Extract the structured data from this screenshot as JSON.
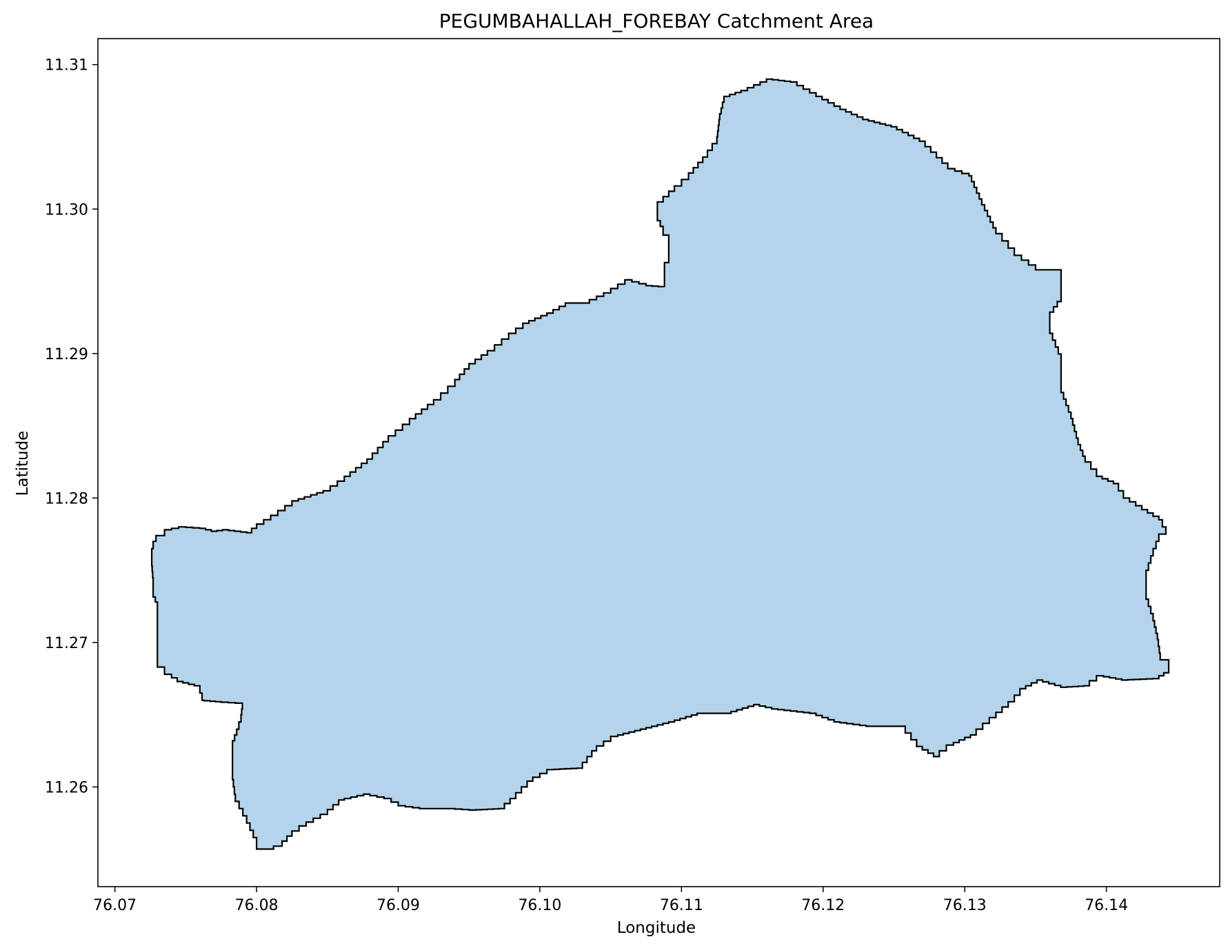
{
  "chart_data": {
    "type": "area",
    "title": "PEGUMBAHALLAH_FOREBAY Catchment Area",
    "xlabel": "Longitude",
    "ylabel": "Latitude",
    "xlim": [
      76.0688,
      76.148
    ],
    "ylim": [
      11.2531,
      11.3118
    ],
    "xticks": [
      76.07,
      76.08,
      76.09,
      76.1,
      76.11,
      76.12,
      76.13,
      76.14
    ],
    "xtick_labels": [
      "76.07",
      "76.08",
      "76.09",
      "76.10",
      "76.11",
      "76.12",
      "76.13",
      "76.14"
    ],
    "yticks": [
      11.26,
      11.27,
      11.28,
      11.29,
      11.3,
      11.31
    ],
    "ytick_labels": [
      "11.26",
      "11.27",
      "11.28",
      "11.29",
      "11.30",
      "11.31"
    ],
    "grid": false,
    "fill_color": "#b3d4ea",
    "edge_color": "#000000",
    "boundary": [
      [
        76.0726,
        11.2765
      ],
      [
        76.0727,
        11.277
      ],
      [
        76.0729,
        11.2774
      ],
      [
        76.0735,
        11.2778
      ],
      [
        76.0745,
        11.278
      ],
      [
        76.076,
        11.2779
      ],
      [
        76.0768,
        11.2777
      ],
      [
        76.0776,
        11.2778
      ],
      [
        76.0793,
        11.2776
      ],
      [
        76.08,
        11.2782
      ],
      [
        76.081,
        11.2788
      ],
      [
        76.0825,
        11.2798
      ],
      [
        76.0847,
        11.2805
      ],
      [
        76.0862,
        11.2815
      ],
      [
        76.0878,
        11.2827
      ],
      [
        76.0893,
        11.2843
      ],
      [
        76.0908,
        11.2855
      ],
      [
        76.0925,
        11.2868
      ],
      [
        76.094,
        11.2882
      ],
      [
        76.095,
        11.2893
      ],
      [
        76.0963,
        11.2902
      ],
      [
        76.0978,
        11.2914
      ],
      [
        76.0988,
        11.2921
      ],
      [
        76.1005,
        11.2928
      ],
      [
        76.1018,
        11.2935
      ],
      [
        76.103,
        11.2935
      ],
      [
        76.1045,
        11.2942
      ],
      [
        76.106,
        11.2951
      ],
      [
        76.1075,
        11.2947
      ],
      [
        76.1088,
        11.2946
      ],
      [
        76.1088,
        11.2963
      ],
      [
        76.1091,
        11.2967
      ],
      [
        76.1091,
        11.2982
      ],
      [
        76.1087,
        11.2988
      ],
      [
        76.1083,
        11.2996
      ],
      [
        76.1083,
        11.3005
      ],
      [
        76.1095,
        11.3016
      ],
      [
        76.1105,
        11.3025
      ],
      [
        76.1115,
        11.3036
      ],
      [
        76.1125,
        11.305
      ],
      [
        76.1127,
        11.3066
      ],
      [
        76.113,
        11.3078
      ],
      [
        76.1142,
        11.3082
      ],
      [
        76.116,
        11.309
      ],
      [
        76.1177,
        11.3088
      ],
      [
        76.1195,
        11.3078
      ],
      [
        76.1212,
        11.3069
      ],
      [
        76.1228,
        11.3062
      ],
      [
        76.1248,
        11.3057
      ],
      [
        76.1268,
        11.3047
      ],
      [
        76.1288,
        11.3028
      ],
      [
        76.1303,
        11.3023
      ],
      [
        76.1312,
        11.3003
      ],
      [
        76.1322,
        11.2983
      ],
      [
        76.1335,
        11.2968
      ],
      [
        76.135,
        11.2958
      ],
      [
        76.1368,
        11.2958
      ],
      [
        76.1368,
        11.2936
      ],
      [
        76.136,
        11.2925
      ],
      [
        76.136,
        11.2914
      ],
      [
        76.1368,
        11.2895
      ],
      [
        76.1368,
        11.2873
      ],
      [
        76.1375,
        11.2855
      ],
      [
        76.138,
        11.2837
      ],
      [
        76.1385,
        11.2825
      ],
      [
        76.1393,
        11.2815
      ],
      [
        76.1405,
        11.281
      ],
      [
        76.1412,
        11.28
      ],
      [
        76.1425,
        11.2792
      ],
      [
        76.1437,
        11.2785
      ],
      [
        76.1442,
        11.2775
      ],
      [
        76.1437,
        11.277
      ],
      [
        76.1433,
        11.276
      ],
      [
        76.1428,
        11.2745
      ],
      [
        76.1428,
        11.273
      ],
      [
        76.1433,
        11.2715
      ],
      [
        76.1436,
        11.2702
      ],
      [
        76.1438,
        11.2688
      ],
      [
        76.1444,
        11.2683
      ],
      [
        76.1444,
        11.2679
      ],
      [
        76.1437,
        11.2675
      ],
      [
        76.1415,
        11.2674
      ],
      [
        76.1398,
        11.2677
      ],
      [
        76.1388,
        11.267
      ],
      [
        76.1372,
        11.2669
      ],
      [
        76.1355,
        11.2674
      ],
      [
        76.1343,
        11.2668
      ],
      [
        76.1335,
        11.2659
      ],
      [
        76.1322,
        11.2648
      ],
      [
        76.1308,
        11.2636
      ],
      [
        76.1292,
        11.2629
      ],
      [
        76.1282,
        11.2621
      ],
      [
        76.127,
        11.2628
      ],
      [
        76.1258,
        11.2642
      ],
      [
        76.1235,
        11.2642
      ],
      [
        76.1212,
        11.2645
      ],
      [
        76.1195,
        11.2651
      ],
      [
        76.1168,
        11.2654
      ],
      [
        76.1155,
        11.2657
      ],
      [
        76.1135,
        11.2651
      ],
      [
        76.1115,
        11.2651
      ],
      [
        76.1095,
        11.2645
      ],
      [
        76.1075,
        11.264
      ],
      [
        76.1055,
        11.2635
      ],
      [
        76.104,
        11.2625
      ],
      [
        76.103,
        11.2613
      ],
      [
        76.101,
        11.2612
      ],
      [
        76.0995,
        11.2604
      ],
      [
        76.0983,
        11.2592
      ],
      [
        76.0975,
        11.2585
      ],
      [
        76.0955,
        11.2584
      ],
      [
        76.094,
        11.2585
      ],
      [
        76.092,
        11.2585
      ],
      [
        76.0905,
        11.2587
      ],
      [
        76.0895,
        11.2592
      ],
      [
        76.088,
        11.2595
      ],
      [
        76.0862,
        11.2591
      ],
      [
        76.085,
        11.2581
      ],
      [
        76.0835,
        11.2573
      ],
      [
        76.0825,
        11.2566
      ],
      [
        76.0818,
        11.2559
      ],
      [
        76.0812,
        11.2557
      ],
      [
        76.08,
        11.2557
      ],
      [
        76.08,
        11.2565
      ],
      [
        76.0793,
        11.258
      ],
      [
        76.0785,
        11.2595
      ],
      [
        76.0783,
        11.261
      ],
      [
        76.0783,
        11.2632
      ],
      [
        76.0786,
        11.264
      ],
      [
        76.0789,
        11.265
      ],
      [
        76.079,
        11.2658
      ],
      [
        76.0775,
        11.2659
      ],
      [
        76.0763,
        11.266
      ],
      [
        76.076,
        11.267
      ],
      [
        76.0748,
        11.2673
      ],
      [
        76.074,
        11.2678
      ],
      [
        76.0735,
        11.2683
      ],
      [
        76.073,
        11.2688
      ],
      [
        76.073,
        11.2702
      ],
      [
        76.073,
        11.2718
      ],
      [
        76.073,
        11.2728
      ],
      [
        76.0727,
        11.2735
      ],
      [
        76.0727,
        11.2745
      ],
      [
        76.0726,
        11.2757
      ]
    ]
  }
}
